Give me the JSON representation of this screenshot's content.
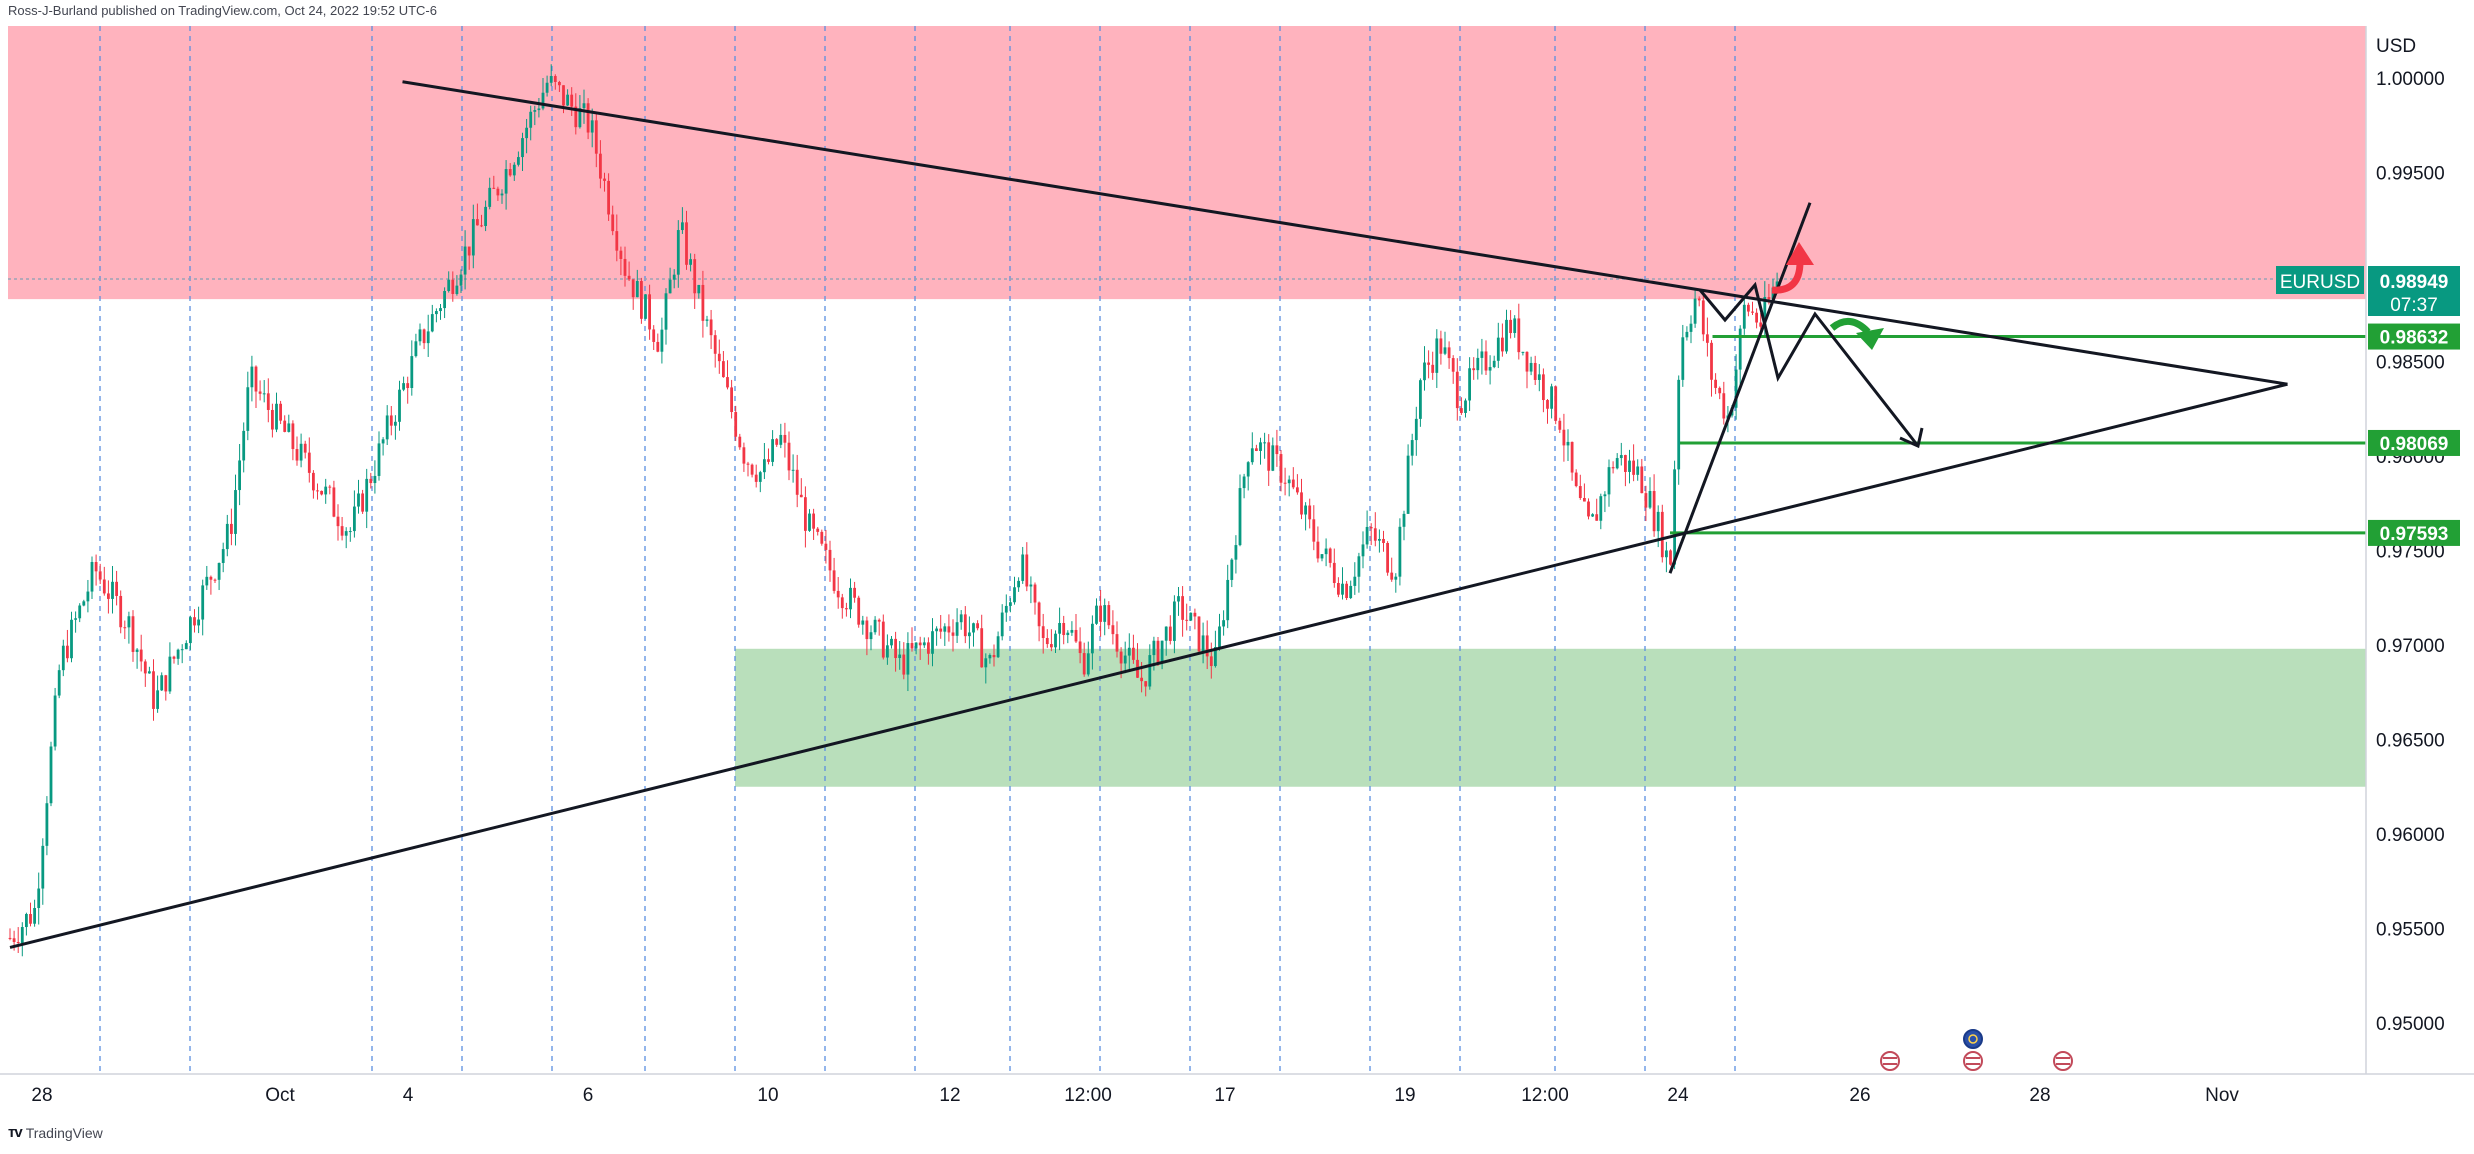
{
  "attribution": "Ross-J-Burland published on TradingView.com, Oct 24, 2022 19:52 UTC-6",
  "footer_brand": "TradingView",
  "chart_data": {
    "type": "candlestick",
    "symbol": "EURUSD",
    "currency": "USD",
    "last_price": "0.98949",
    "countdown": "07:37",
    "y_ticks": [
      "1.00000",
      "0.99500",
      "0.98500",
      "0.98000",
      "0.97500",
      "0.97000",
      "0.96500",
      "0.96000",
      "0.95500",
      "0.95000"
    ],
    "x_ticks": [
      "28",
      "Oct",
      "4",
      "6",
      "10",
      "12",
      "12:00",
      "17",
      "19",
      "12:00",
      "24",
      "26",
      "28",
      "Nov"
    ],
    "level_labels": [
      "0.98632",
      "0.98069",
      "0.97593"
    ],
    "ylim": [
      0.9475,
      1.003
    ],
    "zones": [
      {
        "name": "supply-zone",
        "y_from": 0.9883,
        "y_to": 1.003,
        "color": "#ffb3be"
      },
      {
        "name": "demand-zone",
        "y_from": 0.9625,
        "y_to": 0.9698,
        "color": "#b9dfbb"
      }
    ],
    "price_path": [
      [
        "Sep 28",
        0.9595
      ],
      [
        "Sep 28",
        0.9545
      ],
      [
        "Sep 28 12:00",
        0.956
      ],
      [
        "Sep 29",
        0.969
      ],
      [
        "Sep 29 12:00",
        0.974
      ],
      [
        "Sep 30",
        0.971
      ],
      [
        "Sep 30 12:00",
        0.967
      ],
      [
        "Oct 2",
        0.976
      ],
      [
        "Oct 3",
        0.984
      ],
      [
        "Oct 3 12:00",
        0.98
      ],
      [
        "Oct 4",
        0.976
      ],
      [
        "Oct 4 12:00",
        0.981
      ],
      [
        "Oct 5",
        0.986
      ],
      [
        "Oct 5 12:00",
        0.995
      ],
      [
        "Oct 5 18:00",
        0.9998
      ],
      [
        "Oct 6",
        0.9975
      ],
      [
        "Oct 6 12:00",
        0.99
      ],
      [
        "Oct 7",
        0.986
      ],
      [
        "Oct 7 12:00",
        0.992
      ],
      [
        "Oct 8",
        0.988
      ],
      [
        "Oct 9",
        0.98
      ],
      [
        "Oct 9 12:00",
        0.979
      ],
      [
        "Oct 10",
        0.981
      ],
      [
        "Oct 10 12:00",
        0.976
      ],
      [
        "Oct 11",
        0.973
      ],
      [
        "Oct 11 12:00",
        0.969
      ],
      [
        "Oct 12",
        0.9715
      ],
      [
        "Oct 12 12:00",
        0.969
      ],
      [
        "Oct 13",
        0.9745
      ],
      [
        "Oct 13 12:00",
        0.97
      ],
      [
        "Oct 14",
        0.9715
      ],
      [
        "Oct 14 12:00",
        0.969
      ],
      [
        "Oct 15",
        0.972
      ],
      [
        "Oct 15 12:00",
        0.968
      ],
      [
        "Oct 16",
        0.972
      ],
      [
        "Oct 16 12:00",
        0.969
      ],
      [
        "Oct 17",
        0.981
      ],
      [
        "Oct 17 12:00",
        0.979
      ],
      [
        "Oct 18",
        0.975
      ],
      [
        "Oct 18 12:00",
        0.973
      ],
      [
        "Oct 19",
        0.976
      ],
      [
        "Oct 19 12:00",
        0.974
      ],
      [
        "Oct 20",
        0.984
      ],
      [
        "Oct 20 12:00",
        0.986
      ],
      [
        "Oct 21",
        0.983
      ],
      [
        "Oct 21 12:00",
        0.987
      ],
      [
        "Oct 22",
        0.982
      ],
      [
        "Oct 22 12:00",
        0.978
      ],
      [
        "Oct 23",
        0.976
      ],
      [
        "Oct 23 12:00",
        0.98
      ],
      [
        "Oct 24",
        0.979
      ],
      [
        "Oct 24 12:00",
        0.976
      ],
      [
        "Oct 24 18:00",
        0.974
      ],
      [
        "Oct 25",
        0.986
      ],
      [
        "Oct 25 06:00",
        0.9885
      ],
      [
        "Oct 25 12:00",
        0.984
      ],
      [
        "Oct 25 18:00",
        0.982
      ],
      [
        "Oct 26",
        0.988
      ],
      [
        "Oct 26 06:00",
        0.987
      ],
      [
        "Oct 26 12:00",
        0.9894
      ]
    ],
    "trendlines": [
      {
        "name": "resistance-trendline",
        "from": [
          "Oct 4 18:00",
          0.9998
        ],
        "to": [
          "Nov 1 18:00",
          0.9838
        ]
      },
      {
        "name": "support-trendline",
        "from": [
          "Sep 28",
          0.954
        ],
        "to": [
          "Nov 1 18:00",
          0.9838
        ]
      },
      {
        "name": "rising-trendline",
        "from": [
          "Oct 24 18:00",
          0.9738
        ],
        "to": [
          "Oct 27",
          0.9934
        ]
      }
    ],
    "levels": [
      {
        "value": 0.98632,
        "from": "Oct 25 12:00"
      },
      {
        "value": 0.98069,
        "from": "Oct 25"
      },
      {
        "value": 0.97593,
        "from": "Oct 24 18:00"
      }
    ]
  }
}
